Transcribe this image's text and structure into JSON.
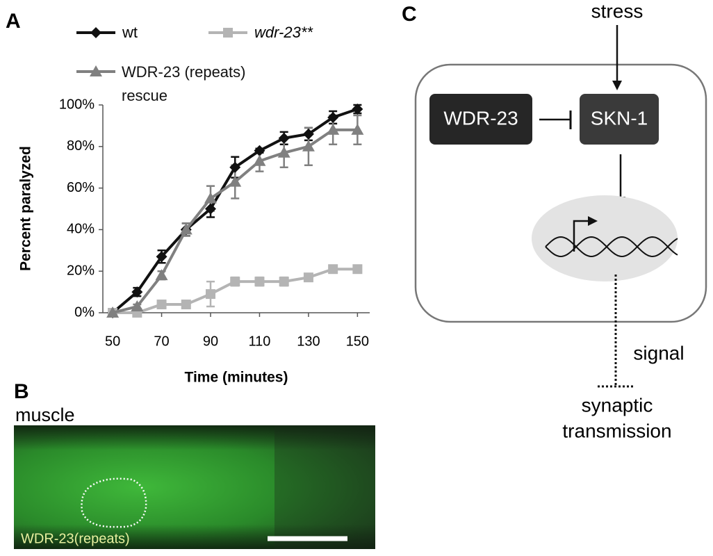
{
  "panel_labels": [
    "A",
    "B",
    "C"
  ],
  "chart_data": {
    "type": "line",
    "xlabel": "Time (minutes)",
    "ylabel": "Percent paralyzed",
    "x": [
      50,
      60,
      70,
      80,
      90,
      100,
      110,
      120,
      130,
      140,
      150
    ],
    "xlim": [
      46,
      155
    ],
    "xticks": [
      50,
      70,
      90,
      110,
      130,
      150
    ],
    "ylim": [
      0,
      100
    ],
    "yticks": [
      {
        "value": 0,
        "label": "0%"
      },
      {
        "value": 20,
        "label": "20%"
      },
      {
        "value": 40,
        "label": "40%"
      },
      {
        "value": 60,
        "label": "60%"
      },
      {
        "value": 80,
        "label": "80%"
      },
      {
        "value": 100,
        "label": "100%"
      }
    ],
    "series": [
      {
        "name": "wt",
        "color": "#111111",
        "marker": "diamond",
        "values": [
          0,
          10,
          27,
          40,
          50,
          70,
          78,
          84,
          86,
          94,
          98
        ],
        "errors": [
          0,
          2,
          3,
          3,
          4,
          5,
          1,
          3,
          3,
          3,
          2
        ]
      },
      {
        "name": "wdr-23**",
        "color": "#b4b4b4",
        "marker": "square",
        "values": [
          0,
          0,
          4,
          4,
          9,
          15,
          15,
          15,
          17,
          21,
          21
        ],
        "errors": [
          0,
          0,
          1,
          1,
          6,
          2,
          2,
          2,
          1,
          1,
          1
        ]
      },
      {
        "name": "WDR-23 (repeats) rescue",
        "color": "#808080",
        "marker": "triangle",
        "values": [
          0,
          3,
          18,
          40,
          55,
          63,
          73,
          77,
          80,
          88,
          88
        ],
        "errors": [
          0,
          1,
          2,
          3,
          6,
          8,
          5,
          7,
          9,
          7,
          7
        ]
      }
    ]
  },
  "image": {
    "title": "muscle",
    "caption": "WDR-23(repeats)"
  },
  "diagram": {
    "input": "stress",
    "nodes": [
      "WDR-23",
      "SKN-1"
    ],
    "output_label": "signal",
    "target_lines": [
      "synaptic",
      "transmission"
    ]
  }
}
